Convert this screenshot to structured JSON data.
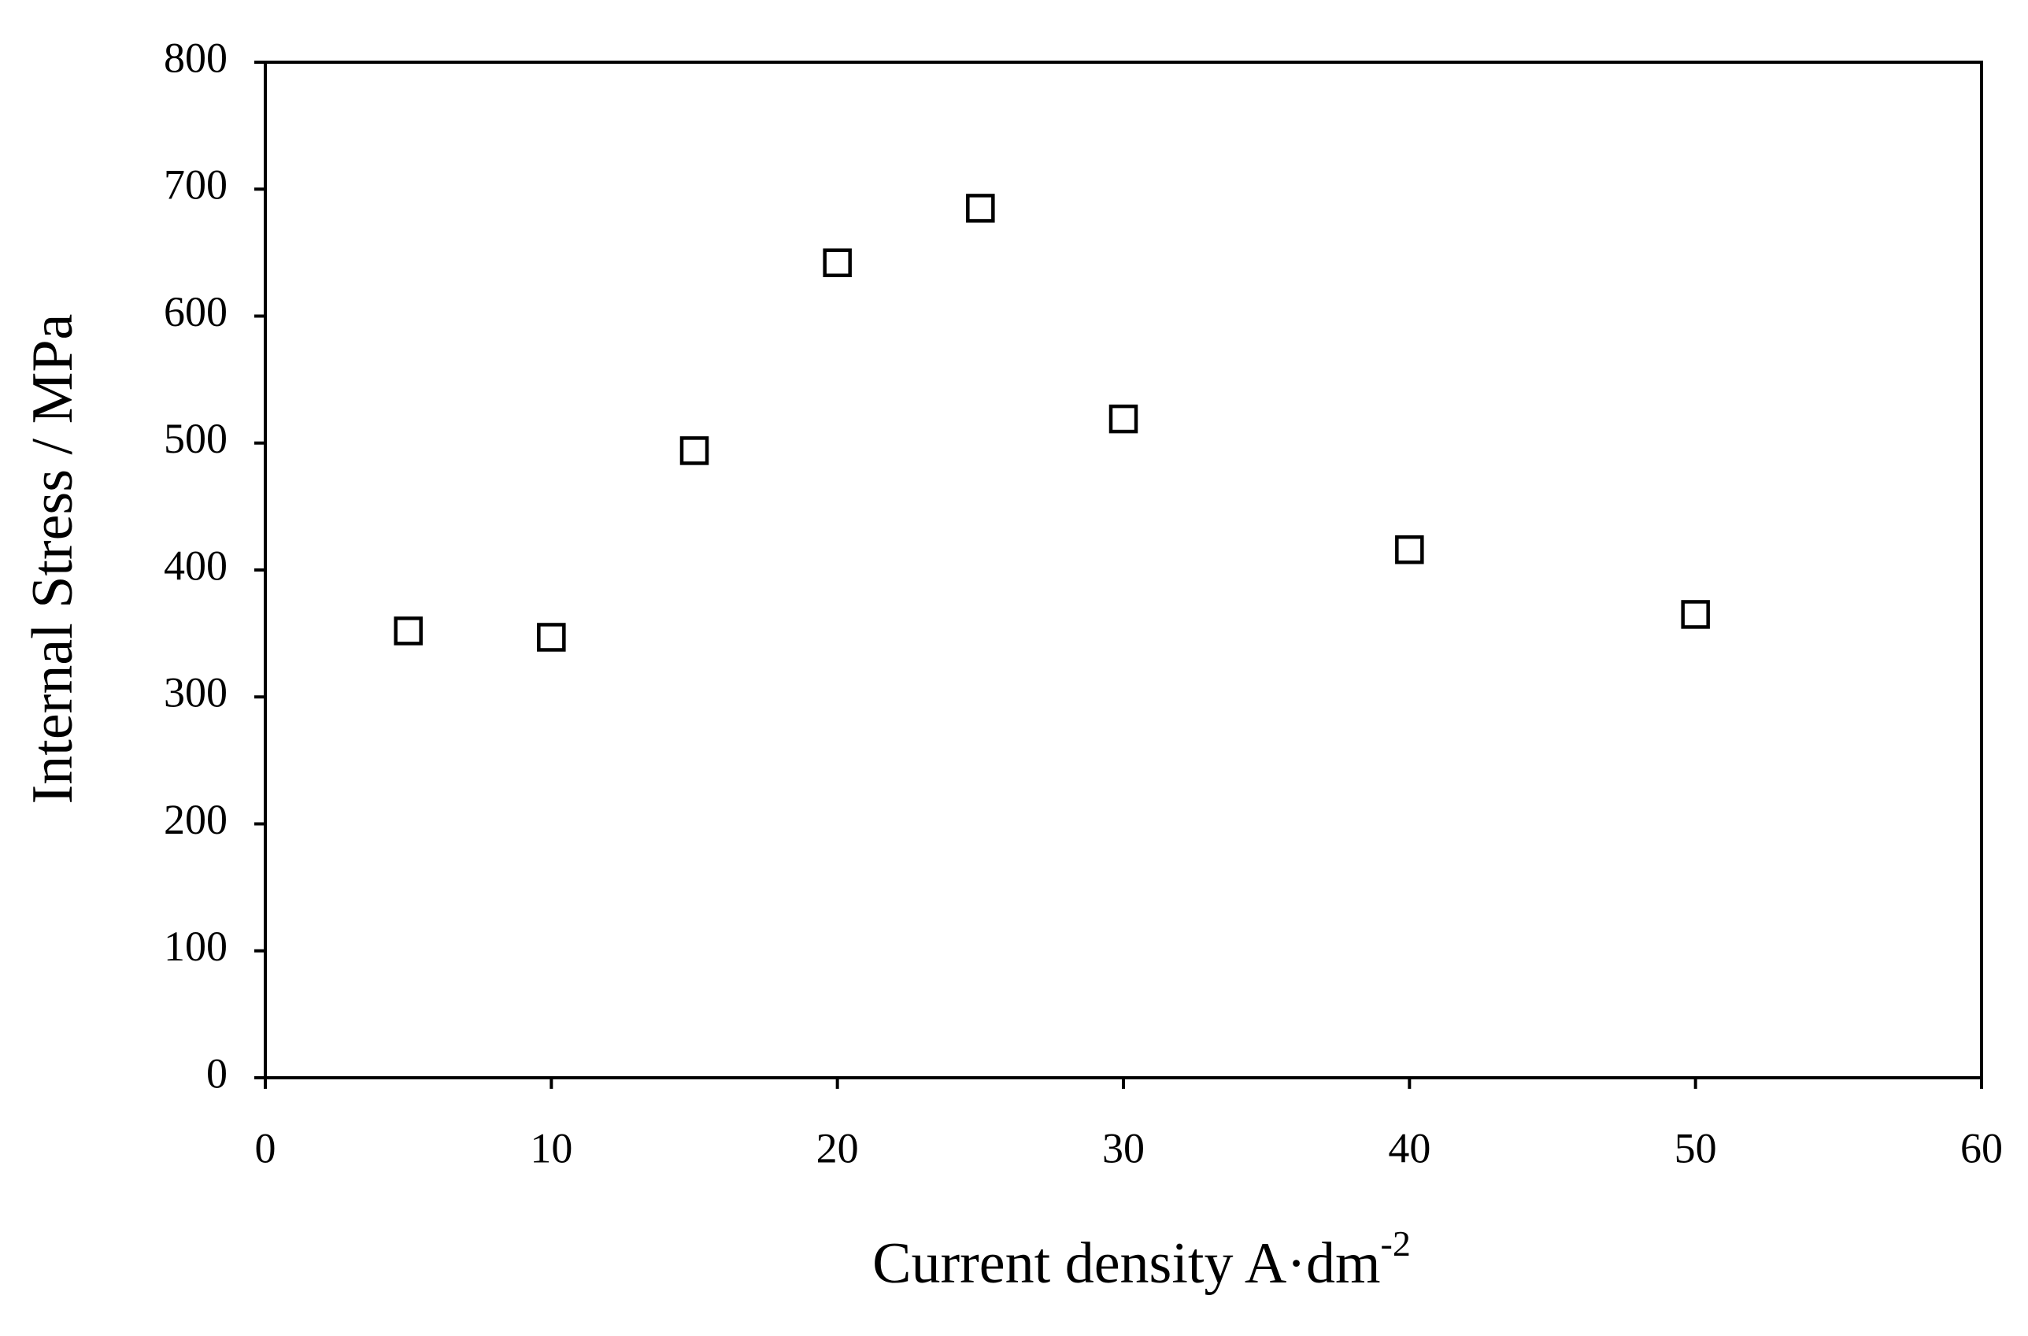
{
  "chart_data": {
    "type": "scatter",
    "x_label": {
      "text": "Current density A·dm",
      "superscript": "-2"
    },
    "y_label": "Internal Stress / MPa",
    "x": [
      5,
      10,
      15,
      20,
      25,
      30,
      40,
      50
    ],
    "values": [
      352,
      347,
      494,
      642,
      685,
      519,
      416,
      365
    ],
    "marker": "square",
    "color": "#000000",
    "xlim": [
      0,
      60
    ],
    "xticks": [
      0,
      10,
      20,
      30,
      40,
      50,
      60
    ],
    "ylim": [
      0,
      800
    ],
    "yticks": [
      0,
      100,
      200,
      300,
      400,
      500,
      600,
      700,
      800
    ],
    "grid": false
  }
}
